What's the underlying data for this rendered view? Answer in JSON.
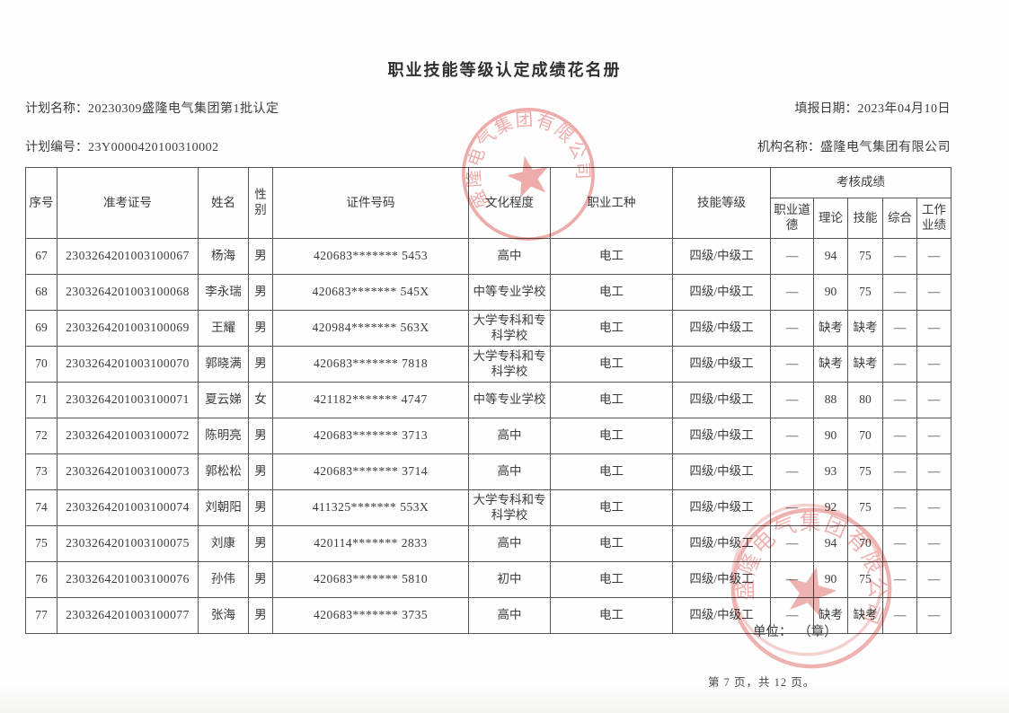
{
  "title": "职业技能等级认定成绩花名册",
  "meta": {
    "plan_name_label": "计划名称：",
    "plan_name": "20230309盛隆电气集团第1批认定",
    "report_date_label": "填报日期：",
    "report_date": "2023年04月10日",
    "plan_no_label": "计划编号：",
    "plan_no": "23Y0000420100310002",
    "org_name_label": "机构名称：",
    "org_name": "盛隆电气集团有限公司"
  },
  "table": {
    "headers": {
      "seq": "序号",
      "ticket_no": "准考证号",
      "name": "姓名",
      "gender": "性别",
      "id_no": "证件号码",
      "education": "文化程度",
      "occupation": "职业工种",
      "level": "技能等级",
      "score_group": "考核成绩",
      "ethics": "职业道德",
      "theory": "理论",
      "skill": "技能",
      "comprehensive": "综合",
      "work": "工作业绩"
    },
    "rows": [
      {
        "seq": "67",
        "ticket_no": "2303264201003100067",
        "name": "杨海",
        "gender": "男",
        "id_no": "420683******* 5453",
        "education": "高中",
        "occupation": "电工",
        "level": "四级/中级工",
        "ethics": "—",
        "theory": "94",
        "skill": "75",
        "comprehensive": "—",
        "work": "—"
      },
      {
        "seq": "68",
        "ticket_no": "2303264201003100068",
        "name": "李永瑞",
        "gender": "男",
        "id_no": "420683******* 545X",
        "education": "中等专业学校",
        "occupation": "电工",
        "level": "四级/中级工",
        "ethics": "—",
        "theory": "90",
        "skill": "75",
        "comprehensive": "—",
        "work": "—"
      },
      {
        "seq": "69",
        "ticket_no": "2303264201003100069",
        "name": "王耀",
        "gender": "男",
        "id_no": "420984******* 563X",
        "education": "大学专科和专科学校",
        "occupation": "电工",
        "level": "四级/中级工",
        "ethics": "—",
        "theory": "缺考",
        "skill": "缺考",
        "comprehensive": "—",
        "work": "—"
      },
      {
        "seq": "70",
        "ticket_no": "2303264201003100070",
        "name": "郭晓满",
        "gender": "男",
        "id_no": "420683******* 7818",
        "education": "大学专科和专科学校",
        "occupation": "电工",
        "level": "四级/中级工",
        "ethics": "—",
        "theory": "缺考",
        "skill": "缺考",
        "comprehensive": "—",
        "work": "—"
      },
      {
        "seq": "71",
        "ticket_no": "2303264201003100071",
        "name": "夏云娣",
        "gender": "女",
        "id_no": "421182******* 4747",
        "education": "中等专业学校",
        "occupation": "电工",
        "level": "四级/中级工",
        "ethics": "—",
        "theory": "88",
        "skill": "80",
        "comprehensive": "—",
        "work": "—"
      },
      {
        "seq": "72",
        "ticket_no": "2303264201003100072",
        "name": "陈明亮",
        "gender": "男",
        "id_no": "420683******* 3713",
        "education": "高中",
        "occupation": "电工",
        "level": "四级/中级工",
        "ethics": "—",
        "theory": "90",
        "skill": "70",
        "comprehensive": "—",
        "work": "—"
      },
      {
        "seq": "73",
        "ticket_no": "2303264201003100073",
        "name": "郭松松",
        "gender": "男",
        "id_no": "420683******* 3714",
        "education": "高中",
        "occupation": "电工",
        "level": "四级/中级工",
        "ethics": "—",
        "theory": "93",
        "skill": "75",
        "comprehensive": "—",
        "work": "—"
      },
      {
        "seq": "74",
        "ticket_no": "2303264201003100074",
        "name": "刘朝阳",
        "gender": "男",
        "id_no": "411325******* 553X",
        "education": "大学专科和专科学校",
        "occupation": "电工",
        "level": "四级/中级工",
        "ethics": "—",
        "theory": "92",
        "skill": "75",
        "comprehensive": "—",
        "work": "—"
      },
      {
        "seq": "75",
        "ticket_no": "2303264201003100075",
        "name": "刘康",
        "gender": "男",
        "id_no": "420114******* 2833",
        "education": "高中",
        "occupation": "电工",
        "level": "四级/中级工",
        "ethics": "—",
        "theory": "94",
        "skill": "70",
        "comprehensive": "—",
        "work": "—"
      },
      {
        "seq": "76",
        "ticket_no": "2303264201003100076",
        "name": "孙伟",
        "gender": "男",
        "id_no": "420683******* 5810",
        "education": "初中",
        "occupation": "电工",
        "level": "四级/中级工",
        "ethics": "—",
        "theory": "90",
        "skill": "75",
        "comprehensive": "—",
        "work": "—"
      },
      {
        "seq": "77",
        "ticket_no": "2303264201003100077",
        "name": "张海",
        "gender": "男",
        "id_no": "420683******* 3735",
        "education": "高中",
        "occupation": "电工",
        "level": "四级/中级工",
        "ethics": "—",
        "theory": "缺考",
        "skill": "缺考",
        "comprehensive": "—",
        "work": "—"
      }
    ]
  },
  "stamps": {
    "seal_text": "盛隆电气集团有限公司",
    "color": "#e06a66"
  },
  "footer": {
    "unit_label": "单位：",
    "unit_seal": "（章）",
    "page_info": "第 7 页，共 12 页。"
  }
}
